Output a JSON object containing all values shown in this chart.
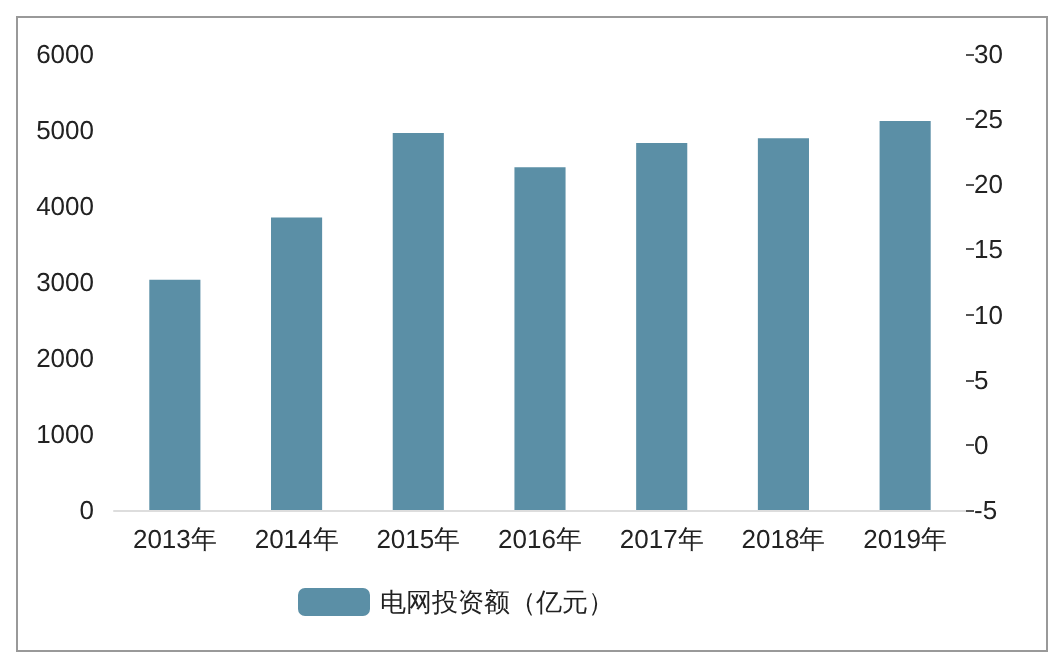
{
  "chart_data": {
    "type": "bar",
    "categories": [
      "2013年",
      "2014年",
      "2015年",
      "2016年",
      "2017年",
      "2018年",
      "2019年"
    ],
    "series": [
      {
        "name": "电网投资额（亿元）",
        "color": "#5b8fa6",
        "values": [
          3030,
          3850,
          4960,
          4510,
          4830,
          4890,
          5120
        ]
      }
    ],
    "ylim": [
      0,
      6000
    ],
    "yticks": [
      0,
      1000,
      2000,
      3000,
      4000,
      5000,
      6000
    ],
    "y2lim": [
      -5,
      30
    ],
    "y2ticks": [
      -5,
      0,
      5,
      10,
      15,
      20,
      25,
      30
    ],
    "grid": false,
    "legend": "bottom"
  }
}
